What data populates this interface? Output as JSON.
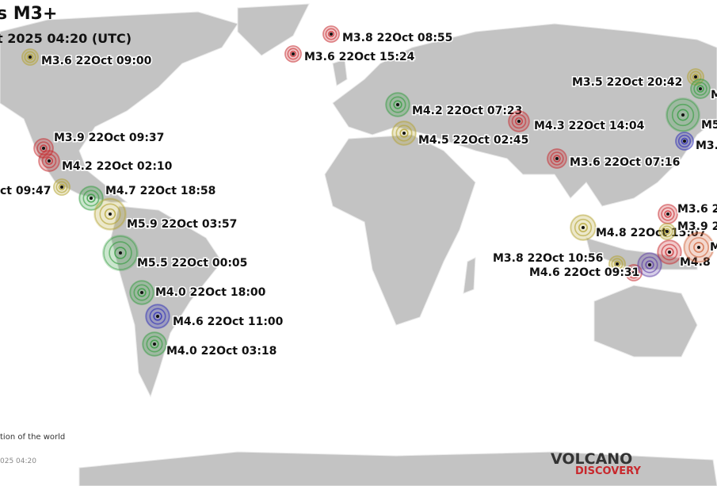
{
  "header": {
    "title": "s M3+",
    "subtitle": "t 2025 04:20 (UTC)"
  },
  "footer": {
    "caption": "tion of the world",
    "stamp": "025 04:20",
    "logo_top": "VOLCANO",
    "logo_bottom": "DISCOVERY"
  },
  "quakes": [
    {
      "label": "M3.6 22Oct 09:00",
      "color": "#b3a22e"
    },
    {
      "label": "M3.8 22Oct 08:55",
      "color": "#c8282d"
    },
    {
      "label": "M3.6 22Oct 15:24",
      "color": "#c8282d"
    },
    {
      "label": "M3.5 22Oct 20:42",
      "color": "#b3a22e"
    },
    {
      "label": "M4.2 22Oct 07:23",
      "color": "#2e9b3b"
    },
    {
      "label": "M4.3 22Oct 14:04",
      "color": "#c8282d"
    },
    {
      "label": "M4.5 22Oct 02:45",
      "color": "#b3a22e"
    },
    {
      "label": "M3.6 22Oct 07:16",
      "color": "#c8282d"
    },
    {
      "label": "M3.9 22Oct 09:37",
      "color": "#c8282d"
    },
    {
      "label": "M4.2 22Oct 02:10",
      "color": "#c8282d"
    },
    {
      "label": "ct 09:47",
      "color": "#b3a22e"
    },
    {
      "label": "M4.7 22Oct 18:58",
      "color": "#2e9b3b"
    },
    {
      "label": "M5.9 22Oct 03:57",
      "color": "#b3a22e"
    },
    {
      "label": "M5.5 22Oct 00:05",
      "color": "#2e9b3b"
    },
    {
      "label": "M4.0 22Oct 18:00",
      "color": "#2e9b3b"
    },
    {
      "label": "M4.6 22Oct 11:00",
      "color": "#2a2ab5"
    },
    {
      "label": "M4.0 22Oct 03:18",
      "color": "#2e9b3b"
    },
    {
      "label": "M4.8 22Oct 15:07",
      "color": "#b3a22e"
    },
    {
      "label": "M3.8 22Oct 10:56",
      "color": "#b3a22e"
    },
    {
      "label": "M4.6 22Oct 09:31",
      "color": "#c8282d"
    },
    {
      "label": "M3.6 2",
      "color": "#c8282d"
    },
    {
      "label": "M3.9 2",
      "color": "#b3a22e"
    },
    {
      "label": "M4.8",
      "color": "#c8282d"
    },
    {
      "label": "M",
      "color": "#d0643a"
    },
    {
      "label": "M5",
      "color": "#2e9b3b"
    },
    {
      "label": "M3.",
      "color": "#2a2ab5"
    },
    {
      "label": "M",
      "color": "#2e9b3b"
    },
    {
      "label": null,
      "color": "#5a3aa5"
    }
  ]
}
